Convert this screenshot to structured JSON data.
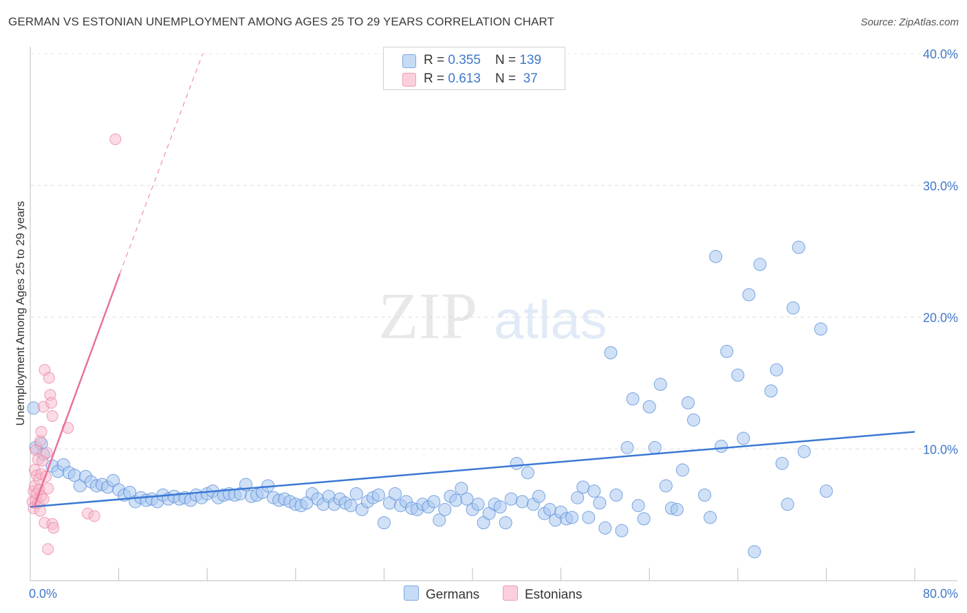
{
  "title": "GERMAN VS ESTONIAN UNEMPLOYMENT AMONG AGES 25 TO 29 YEARS CORRELATION CHART",
  "source": "Source: ZipAtlas.com",
  "legend": {
    "rows": [
      {
        "r_label": "R = ",
        "r_value": "0.355",
        "n_label": "N = ",
        "n_value": "139",
        "color": "#a9c8f0"
      },
      {
        "r_label": "R = ",
        "r_value": "0.613",
        "n_label": "N = ",
        "n_value": " 37",
        "color": "#f7b8ca"
      }
    ]
  },
  "bottom_legend": [
    {
      "label": "Germans",
      "color": "#a9c8f0"
    },
    {
      "label": "Estonians",
      "color": "#f7b8ca"
    }
  ],
  "watermark": {
    "zip": "ZIP",
    "atlas": "atlas"
  },
  "chart_data": {
    "type": "scatter",
    "title": "GERMAN VS ESTONIAN UNEMPLOYMENT AMONG AGES 25 TO 29 YEARS CORRELATION CHART",
    "xlabel": "",
    "ylabel": "Unemployment Among Ages 25 to 29 years",
    "xlim": [
      0,
      80
    ],
    "ylim": [
      0,
      40
    ],
    "x_tick_labels": [
      "0.0%",
      "80.0%"
    ],
    "y_ticks": [
      10,
      20,
      30,
      40
    ],
    "y_tick_labels": [
      "10.0%",
      "20.0%",
      "30.0%",
      "40.0%"
    ],
    "grid": true,
    "legend_position": "top-center",
    "colors": {
      "germans": "#3a78d4",
      "estonians": "#e8719a",
      "germans_fill": "#a9c8f0",
      "estonians_fill": "#f7b8ca"
    },
    "series": [
      {
        "name": "Germans",
        "R": 0.355,
        "N": 139,
        "trend": {
          "x": [
            0,
            80
          ],
          "y": [
            5.6,
            11.3
          ]
        },
        "points": [
          [
            0.3,
            13.1
          ],
          [
            0.5,
            10.1
          ],
          [
            1.0,
            10.4
          ],
          [
            1.2,
            9.6
          ],
          [
            2.0,
            8.7
          ],
          [
            2.5,
            8.3
          ],
          [
            3.0,
            8.8
          ],
          [
            3.5,
            8.2
          ],
          [
            4.0,
            8.0
          ],
          [
            4.5,
            7.2
          ],
          [
            5.0,
            7.9
          ],
          [
            5.5,
            7.5
          ],
          [
            6.0,
            7.2
          ],
          [
            6.5,
            7.3
          ],
          [
            7.0,
            7.1
          ],
          [
            7.5,
            7.6
          ],
          [
            8.0,
            6.9
          ],
          [
            8.5,
            6.5
          ],
          [
            9.0,
            6.7
          ],
          [
            9.5,
            6.0
          ],
          [
            10.0,
            6.3
          ],
          [
            10.5,
            6.1
          ],
          [
            11.0,
            6.2
          ],
          [
            11.5,
            6.0
          ],
          [
            12.0,
            6.5
          ],
          [
            12.5,
            6.2
          ],
          [
            13.0,
            6.4
          ],
          [
            13.5,
            6.2
          ],
          [
            14.0,
            6.3
          ],
          [
            14.5,
            6.1
          ],
          [
            15.0,
            6.5
          ],
          [
            15.5,
            6.3
          ],
          [
            16.0,
            6.6
          ],
          [
            16.5,
            6.8
          ],
          [
            17.0,
            6.3
          ],
          [
            17.5,
            6.5
          ],
          [
            18.0,
            6.6
          ],
          [
            18.5,
            6.5
          ],
          [
            19.0,
            6.6
          ],
          [
            19.5,
            7.3
          ],
          [
            20.0,
            6.4
          ],
          [
            20.5,
            6.5
          ],
          [
            21.0,
            6.7
          ],
          [
            21.5,
            7.2
          ],
          [
            22.0,
            6.3
          ],
          [
            22.5,
            6.1
          ],
          [
            23.0,
            6.2
          ],
          [
            23.5,
            6.0
          ],
          [
            24.0,
            5.8
          ],
          [
            24.5,
            5.7
          ],
          [
            25.0,
            5.9
          ],
          [
            25.5,
            6.6
          ],
          [
            26.0,
            6.2
          ],
          [
            26.5,
            5.8
          ],
          [
            27.0,
            6.4
          ],
          [
            27.5,
            5.8
          ],
          [
            28.0,
            6.2
          ],
          [
            28.5,
            5.9
          ],
          [
            29.0,
            5.7
          ],
          [
            29.5,
            6.6
          ],
          [
            30.0,
            5.4
          ],
          [
            30.5,
            6.0
          ],
          [
            31.0,
            6.3
          ],
          [
            31.5,
            6.5
          ],
          [
            32.0,
            4.4
          ],
          [
            32.5,
            5.9
          ],
          [
            33.0,
            6.6
          ],
          [
            33.5,
            5.7
          ],
          [
            34.0,
            6.0
          ],
          [
            34.5,
            5.5
          ],
          [
            35.0,
            5.4
          ],
          [
            35.5,
            5.8
          ],
          [
            36.0,
            5.6
          ],
          [
            36.5,
            6.0
          ],
          [
            37.0,
            4.6
          ],
          [
            37.5,
            5.4
          ],
          [
            38.0,
            6.4
          ],
          [
            38.5,
            6.1
          ],
          [
            39.0,
            7.0
          ],
          [
            39.5,
            6.2
          ],
          [
            40.0,
            5.4
          ],
          [
            40.5,
            5.8
          ],
          [
            41.0,
            4.4
          ],
          [
            41.5,
            5.1
          ],
          [
            42.0,
            5.8
          ],
          [
            42.5,
            5.6
          ],
          [
            43.0,
            4.4
          ],
          [
            43.5,
            6.2
          ],
          [
            44.0,
            8.9
          ],
          [
            44.5,
            6.0
          ],
          [
            45.0,
            8.2
          ],
          [
            45.5,
            5.8
          ],
          [
            46.0,
            6.4
          ],
          [
            46.5,
            5.1
          ],
          [
            47.0,
            5.4
          ],
          [
            47.5,
            4.6
          ],
          [
            48.0,
            5.2
          ],
          [
            48.5,
            4.7
          ],
          [
            49.0,
            4.8
          ],
          [
            49.5,
            6.3
          ],
          [
            50.0,
            7.1
          ],
          [
            50.5,
            4.8
          ],
          [
            51.0,
            6.8
          ],
          [
            51.5,
            5.9
          ],
          [
            52.0,
            4.0
          ],
          [
            52.5,
            17.3
          ],
          [
            53.0,
            6.5
          ],
          [
            53.5,
            3.8
          ],
          [
            54.0,
            10.1
          ],
          [
            54.5,
            13.8
          ],
          [
            55.0,
            5.7
          ],
          [
            55.5,
            4.7
          ],
          [
            56.0,
            13.2
          ],
          [
            56.5,
            10.1
          ],
          [
            57.0,
            14.9
          ],
          [
            57.5,
            7.2
          ],
          [
            58.0,
            5.5
          ],
          [
            58.5,
            5.4
          ],
          [
            59.0,
            8.4
          ],
          [
            59.5,
            13.5
          ],
          [
            60.0,
            12.2
          ],
          [
            61.0,
            6.5
          ],
          [
            61.5,
            4.8
          ],
          [
            62.0,
            24.6
          ],
          [
            62.5,
            10.2
          ],
          [
            63.0,
            17.4
          ],
          [
            64.0,
            15.6
          ],
          [
            64.5,
            10.8
          ],
          [
            65.0,
            21.7
          ],
          [
            65.5,
            2.2
          ],
          [
            66.0,
            24.0
          ],
          [
            67.0,
            14.4
          ],
          [
            67.5,
            16.0
          ],
          [
            68.0,
            8.9
          ],
          [
            68.5,
            5.8
          ],
          [
            69.0,
            20.7
          ],
          [
            69.5,
            25.3
          ],
          [
            70.0,
            9.8
          ],
          [
            71.5,
            19.1
          ],
          [
            72.0,
            6.8
          ]
        ]
      },
      {
        "name": "Estonians",
        "R": 0.613,
        "N": 37,
        "trend": {
          "x": [
            0.3,
            8.1
          ],
          "y": [
            5.5,
            23.3
          ]
        },
        "trend_extension": {
          "x": [
            8.1,
            15.6
          ],
          "y": [
            23.3,
            40.0
          ]
        },
        "points": [
          [
            0.2,
            6.0
          ],
          [
            0.3,
            5.5
          ],
          [
            0.3,
            6.8
          ],
          [
            0.4,
            8.4
          ],
          [
            0.4,
            7.2
          ],
          [
            0.5,
            9.9
          ],
          [
            0.5,
            6.1
          ],
          [
            0.6,
            8.0
          ],
          [
            0.6,
            6.6
          ],
          [
            0.7,
            9.2
          ],
          [
            0.7,
            5.9
          ],
          [
            0.8,
            7.7
          ],
          [
            0.8,
            6.9
          ],
          [
            0.9,
            10.6
          ],
          [
            0.9,
            5.3
          ],
          [
            1.0,
            11.3
          ],
          [
            1.0,
            8.1
          ],
          [
            1.0,
            6.4
          ],
          [
            1.1,
            9.1
          ],
          [
            1.2,
            13.2
          ],
          [
            1.2,
            6.2
          ],
          [
            1.3,
            4.4
          ],
          [
            1.3,
            16.0
          ],
          [
            1.4,
            7.9
          ],
          [
            1.5,
            9.7
          ],
          [
            1.6,
            7.0
          ],
          [
            1.6,
            2.4
          ],
          [
            1.7,
            15.4
          ],
          [
            1.8,
            14.1
          ],
          [
            1.9,
            13.5
          ],
          [
            2.0,
            4.3
          ],
          [
            2.0,
            12.5
          ],
          [
            2.1,
            4.0
          ],
          [
            3.4,
            11.6
          ],
          [
            5.2,
            5.1
          ],
          [
            5.8,
            4.9
          ],
          [
            7.7,
            33.5
          ]
        ]
      }
    ]
  }
}
